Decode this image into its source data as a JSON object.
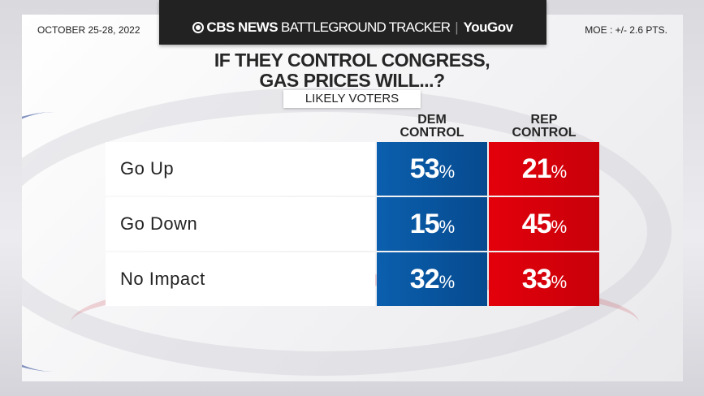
{
  "header": {
    "brand": "CBS NEWS",
    "tracker": "BATTLEGROUND TRACKER",
    "partner": "YouGov",
    "date": "OCTOBER 25-28, 2022",
    "moe": "MOE : +/- 2.6 PTS."
  },
  "colors": {
    "dem": "#0b5fae",
    "rep": "#e3000b"
  },
  "chart_data": {
    "type": "table",
    "title_line1": "IF THEY CONTROL CONGRESS,",
    "title_line2": "GAS PRICES WILL...?",
    "subtitle": "LIKELY VOTERS",
    "columns": [
      {
        "line1": "DEM",
        "line2": "CONTROL"
      },
      {
        "line1": "REP",
        "line2": "CONTROL"
      }
    ],
    "rows": [
      {
        "label": "Go Up",
        "dem": "53",
        "rep": "21"
      },
      {
        "label": "Go Down",
        "dem": "15",
        "rep": "45"
      },
      {
        "label": "No Impact",
        "dem": "32",
        "rep": "33"
      }
    ],
    "unit": "%"
  }
}
